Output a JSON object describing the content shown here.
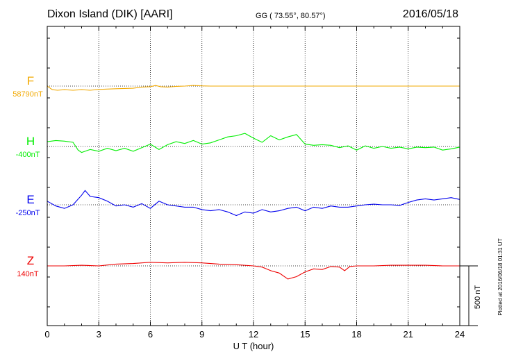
{
  "header": {
    "station": "Dixon Island (DIK)  [AARI]",
    "coords": "GG ( 73.55°,  80.57°)",
    "date": "2016/05/18"
  },
  "footer": {
    "plotted": "Plotted at 2016/06/18 01:31  UT",
    "scale_label": "500 nT"
  },
  "chart_data": {
    "type": "line",
    "title": "Dixon Island (DIK)  [AARI]",
    "xlabel": "U T (hour)",
    "ylabel": "",
    "xlim": [
      0,
      24
    ],
    "xticks": [
      0,
      3,
      6,
      9,
      12,
      15,
      18,
      21,
      24
    ],
    "grid": true,
    "scale_bar_nT": 500,
    "series": [
      {
        "name": "F",
        "baseline": "58790nT",
        "color": "#f2a900",
        "x": [
          0,
          0.3,
          0.6,
          1,
          1.5,
          2,
          2.5,
          3,
          3.5,
          4,
          4.5,
          5,
          5.5,
          6,
          6.3,
          6.6,
          7,
          7.5,
          8,
          8.5,
          9,
          9.5,
          10,
          11,
          12,
          13,
          14,
          15,
          16,
          17,
          18,
          19,
          20,
          21,
          22,
          23,
          24
        ],
        "y": [
          0,
          -30,
          -35,
          -30,
          -35,
          -30,
          -35,
          -28,
          -25,
          -22,
          -20,
          -18,
          -8,
          -5,
          5,
          -5,
          -8,
          -3,
          0,
          5,
          2,
          0,
          0,
          0,
          0,
          0,
          0,
          0,
          0,
          0,
          0,
          0,
          0,
          0,
          0,
          0,
          0
        ]
      },
      {
        "name": "H",
        "baseline": "-400nT",
        "color": "#00ee00",
        "x": [
          0,
          0.5,
          1,
          1.5,
          1.8,
          2,
          2.5,
          3,
          3.5,
          4,
          4.5,
          5,
          5.5,
          6,
          6.5,
          7,
          7.5,
          8,
          8.5,
          9,
          9.5,
          10,
          10.5,
          11,
          11.5,
          12,
          12.5,
          13,
          13.5,
          14,
          14.5,
          15,
          15.5,
          16,
          16.5,
          17,
          17.5,
          18,
          18.5,
          19,
          19.5,
          20,
          20.5,
          21,
          21.5,
          22,
          22.5,
          23,
          23.5,
          24
        ],
        "y": [
          40,
          50,
          45,
          35,
          -30,
          -50,
          -25,
          -40,
          -15,
          -35,
          -15,
          -40,
          -10,
          20,
          -25,
          15,
          40,
          25,
          50,
          20,
          30,
          55,
          80,
          90,
          110,
          70,
          35,
          90,
          55,
          80,
          100,
          20,
          10,
          15,
          10,
          -10,
          5,
          -30,
          5,
          -15,
          0,
          -15,
          -5,
          -20,
          -5,
          -10,
          -5,
          -30,
          -20,
          -5
        ]
      },
      {
        "name": "E",
        "baseline": "-250nT",
        "color": "#0000ee",
        "x": [
          0,
          0.5,
          1,
          1.5,
          2,
          2.2,
          2.5,
          3,
          3.5,
          4,
          4.5,
          5,
          5.5,
          6,
          6.5,
          7,
          7.5,
          8,
          8.5,
          9,
          9.5,
          10,
          10.5,
          11,
          11.5,
          12,
          12.5,
          13,
          13.5,
          14,
          14.5,
          15,
          15.5,
          16,
          16.5,
          17,
          17.5,
          18,
          18.5,
          19,
          19.5,
          20,
          20.5,
          21,
          21.5,
          22,
          22.5,
          23,
          23.5,
          24
        ],
        "y": [
          30,
          -10,
          -30,
          0,
          80,
          120,
          70,
          60,
          30,
          -10,
          0,
          -20,
          10,
          -30,
          30,
          0,
          -10,
          -20,
          -20,
          -40,
          -50,
          -40,
          -60,
          -90,
          -60,
          -70,
          -40,
          -60,
          -50,
          -30,
          -20,
          -50,
          -20,
          -30,
          -10,
          -20,
          -20,
          -10,
          0,
          5,
          0,
          0,
          -5,
          20,
          40,
          50,
          40,
          50,
          60,
          45
        ]
      },
      {
        "name": "Z",
        "baseline": "140nT",
        "color": "#ee0000",
        "x": [
          0,
          1,
          2,
          3,
          4,
          5,
          6,
          7,
          8,
          9,
          10,
          11,
          12,
          12.5,
          13,
          13.5,
          14,
          14.5,
          15,
          15.5,
          16,
          16.5,
          17,
          17.3,
          17.6,
          18,
          19,
          20,
          21,
          22,
          23,
          24
        ],
        "y": [
          0,
          0,
          5,
          0,
          15,
          20,
          30,
          25,
          30,
          25,
          15,
          10,
          0,
          -10,
          -40,
          -60,
          -110,
          -90,
          -50,
          -25,
          -30,
          -5,
          -10,
          -40,
          -5,
          0,
          0,
          5,
          5,
          5,
          0,
          0
        ]
      }
    ]
  }
}
